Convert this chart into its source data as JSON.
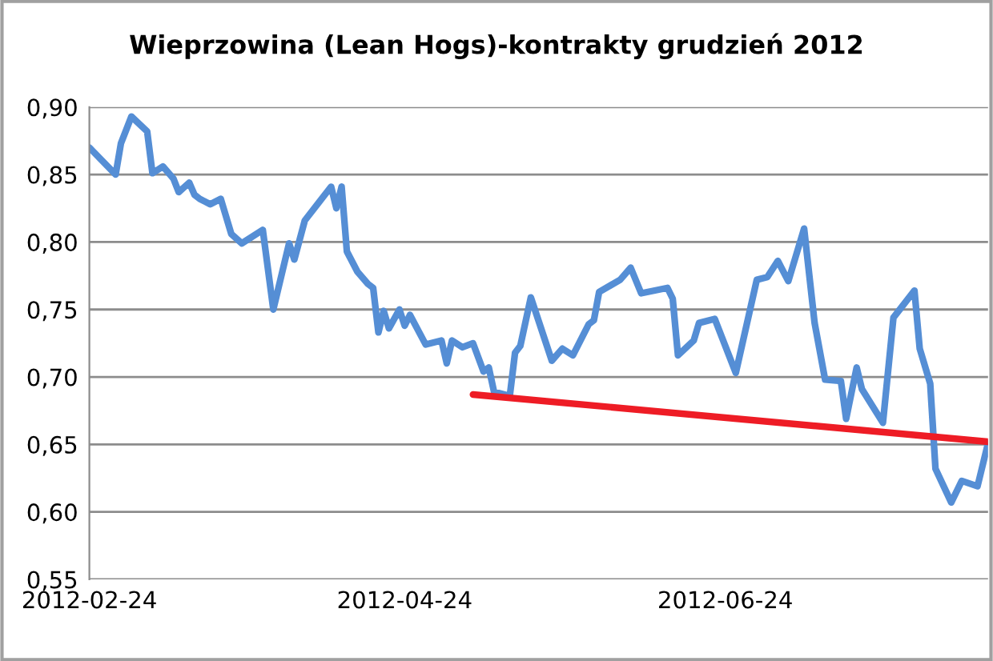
{
  "chart_data": {
    "type": "line",
    "title": "Wieprzowina (Lean Hogs)-kontrakty grudzień 2012",
    "x": [
      "2012-02-24",
      "2012-02-29",
      "2012-03-01",
      "2012-03-03",
      "2012-03-06",
      "2012-03-07",
      "2012-03-09",
      "2012-03-11",
      "2012-03-12",
      "2012-03-14",
      "2012-03-15",
      "2012-03-16",
      "2012-03-18",
      "2012-03-20",
      "2012-03-22",
      "2012-03-24",
      "2012-03-28",
      "2012-03-30",
      "2012-04-02",
      "2012-04-03",
      "2012-04-05",
      "2012-04-10",
      "2012-04-11",
      "2012-04-12",
      "2012-04-13",
      "2012-04-15",
      "2012-04-17",
      "2012-04-18",
      "2012-04-19",
      "2012-04-20",
      "2012-04-21",
      "2012-04-23",
      "2012-04-24",
      "2012-04-25",
      "2012-04-28",
      "2012-05-01",
      "2012-05-02",
      "2012-05-03",
      "2012-05-05",
      "2012-05-07",
      "2012-05-09",
      "2012-05-10",
      "2012-05-11",
      "2012-05-14",
      "2012-05-15",
      "2012-05-16",
      "2012-05-18",
      "2012-05-22",
      "2012-05-24",
      "2012-05-26",
      "2012-05-29",
      "2012-05-30",
      "2012-05-31",
      "2012-06-04",
      "2012-06-06",
      "2012-06-08",
      "2012-06-13",
      "2012-06-14",
      "2012-06-15",
      "2012-06-18",
      "2012-06-19",
      "2012-06-22",
      "2012-06-26",
      "2012-06-30",
      "2012-07-02",
      "2012-07-04",
      "2012-07-06",
      "2012-07-09",
      "2012-07-11",
      "2012-07-13",
      "2012-07-16",
      "2012-07-17",
      "2012-07-19",
      "2012-07-20",
      "2012-07-24",
      "2012-07-26",
      "2012-07-30",
      "2012-07-31",
      "2012-08-02",
      "2012-08-03",
      "2012-08-06",
      "2012-08-08",
      "2012-08-11",
      "2012-08-13"
    ],
    "series": [
      {
        "color": "#558ed5",
        "values": [
          0.87,
          0.85,
          0.873,
          0.893,
          0.882,
          0.851,
          0.856,
          0.847,
          0.837,
          0.844,
          0.835,
          0.832,
          0.828,
          0.832,
          0.806,
          0.799,
          0.809,
          0.75,
          0.799,
          0.787,
          0.816,
          0.841,
          0.825,
          0.841,
          0.793,
          0.778,
          0.769,
          0.766,
          0.733,
          0.749,
          0.736,
          0.75,
          0.738,
          0.746,
          0.724,
          0.727,
          0.71,
          0.727,
          0.722,
          0.725,
          0.704,
          0.707,
          0.689,
          0.686,
          0.718,
          0.723,
          0.759,
          0.712,
          0.721,
          0.716,
          0.739,
          0.742,
          0.763,
          0.772,
          0.781,
          0.762,
          0.766,
          0.758,
          0.716,
          0.727,
          0.74,
          0.743,
          0.703,
          0.772,
          0.774,
          0.786,
          0.771,
          0.81,
          0.74,
          0.698,
          0.697,
          0.669,
          0.707,
          0.691,
          0.666,
          0.744,
          0.764,
          0.721,
          0.695,
          0.632,
          0.607,
          0.623,
          0.619,
          0.651
        ]
      },
      {
        "type": "line",
        "color": "#ee1c25",
        "x": [
          "2012-05-07",
          "2012-08-13"
        ],
        "values": [
          0.687,
          0.652
        ]
      }
    ],
    "xlim": [
      "2012-02-24",
      "2012-08-13"
    ],
    "xticks": [
      "2012-02-24",
      "2012-04-24",
      "2012-06-24"
    ],
    "ylim": [
      0.55,
      0.9
    ],
    "yticks": [
      {
        "value": 0.55,
        "label": "0,55"
      },
      {
        "value": 0.6,
        "label": "0,60"
      },
      {
        "value": 0.65,
        "label": "0,65"
      },
      {
        "value": 0.7,
        "label": "0,70"
      },
      {
        "value": 0.75,
        "label": "0,75"
      },
      {
        "value": 0.8,
        "label": "0,80"
      },
      {
        "value": 0.85,
        "label": "0,85"
      },
      {
        "value": 0.9,
        "label": "0,90"
      }
    ],
    "grid": "y"
  }
}
